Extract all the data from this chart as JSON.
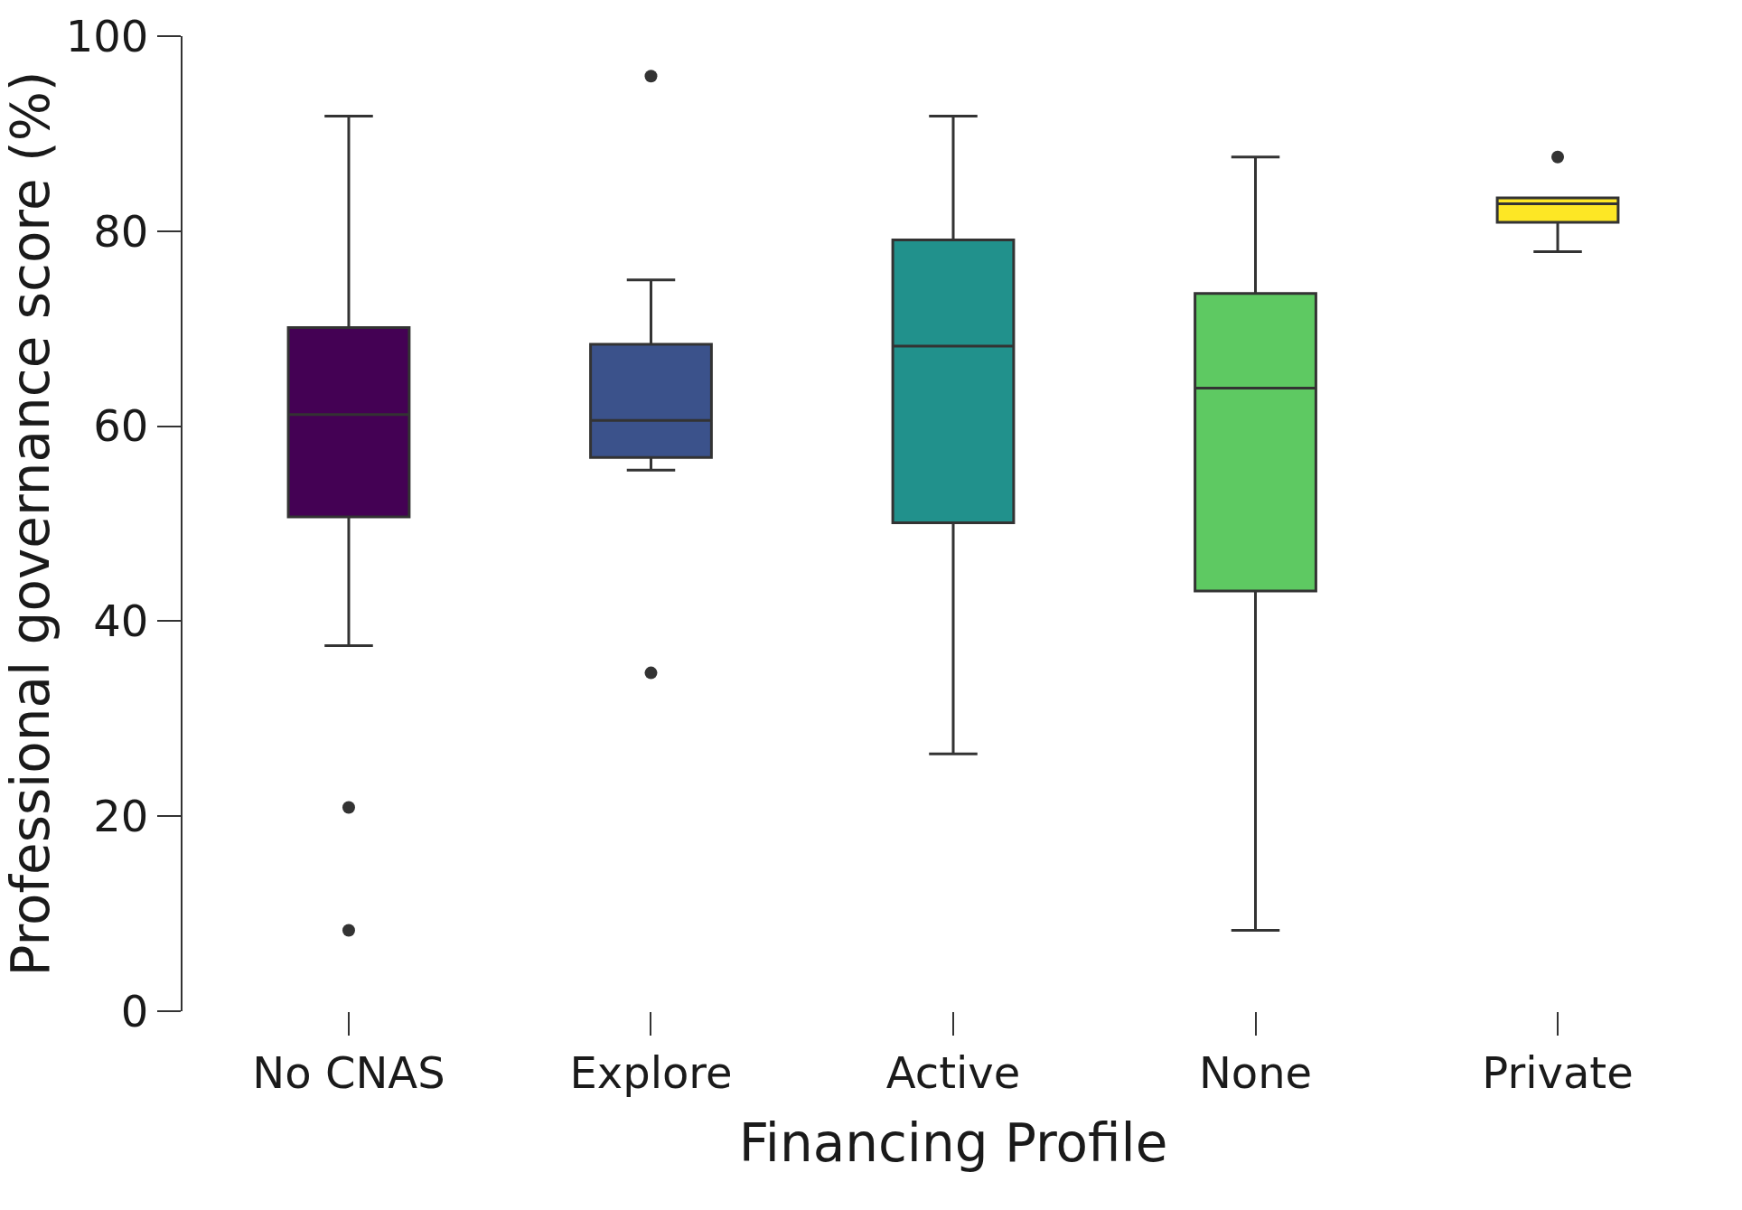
{
  "chart_data": {
    "type": "box",
    "xlabel": "Financing Profile",
    "ylabel": "Professional governance score (%)",
    "categories": [
      "No CNAS",
      "Explore",
      "Active",
      "None",
      "Private"
    ],
    "colors": [
      "#440154",
      "#3b528b",
      "#21918c",
      "#5ec962",
      "#fde725"
    ],
    "boxes": [
      {
        "low": 37.5,
        "q1": 50.7,
        "median": 61.2,
        "q3": 70.1,
        "high": 91.8,
        "outliers": [
          20.9,
          8.3
        ]
      },
      {
        "low": 55.5,
        "q1": 56.8,
        "median": 60.6,
        "q3": 68.4,
        "high": 75.0,
        "outliers": [
          95.9,
          34.7
        ]
      },
      {
        "low": 26.4,
        "q1": 50.1,
        "median": 68.2,
        "q3": 79.1,
        "high": 91.8
      },
      {
        "low": 8.3,
        "q1": 43.1,
        "median": 63.9,
        "q3": 73.6,
        "high": 87.6
      },
      {
        "low": 77.9,
        "q1": 80.9,
        "median": 82.8,
        "q3": 83.4,
        "high": 83.4,
        "outliers": [
          87.6
        ]
      }
    ],
    "ylim": [
      0,
      100
    ],
    "yticks": [
      0,
      20,
      40,
      60,
      80,
      100
    ],
    "grid": false
  }
}
